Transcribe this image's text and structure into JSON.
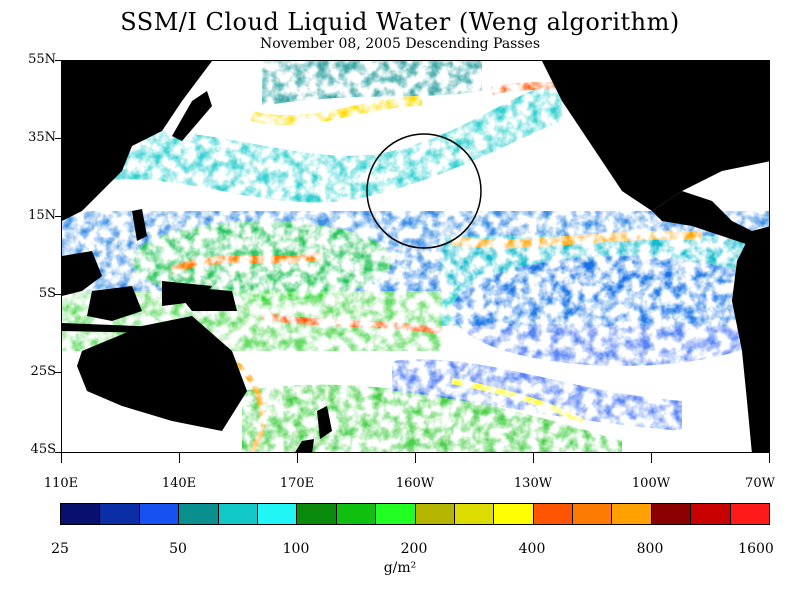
{
  "title": "SSM/I Cloud Liquid Water (Weng algorithm)",
  "subtitle": "November 08, 2005  Descending Passes",
  "lat_labels": [
    "55N",
    "35N",
    "15N",
    "5S",
    "25S",
    "45S"
  ],
  "lon_labels": [
    "110E",
    "140E",
    "170E",
    "160W",
    "130W",
    "100W",
    "70W"
  ],
  "colorbar": {
    "colors": [
      "#08106e",
      "#0a2ea6",
      "#1552f0",
      "#0a8f8f",
      "#10c8c8",
      "#22f5f5",
      "#0a8a0a",
      "#10c010",
      "#22ff22",
      "#b5b500",
      "#dcdc00",
      "#ffff00",
      "#ff5500",
      "#ff7a00",
      "#ffa200",
      "#8b0000",
      "#c80000",
      "#ff1a1a"
    ],
    "tick_labels": [
      "25",
      "50",
      "100",
      "200",
      "400",
      "800",
      "1600"
    ],
    "units": "g/m²"
  },
  "colors": {
    "land": "#000000",
    "ocean": "#ffffff"
  },
  "annotation": "circle"
}
